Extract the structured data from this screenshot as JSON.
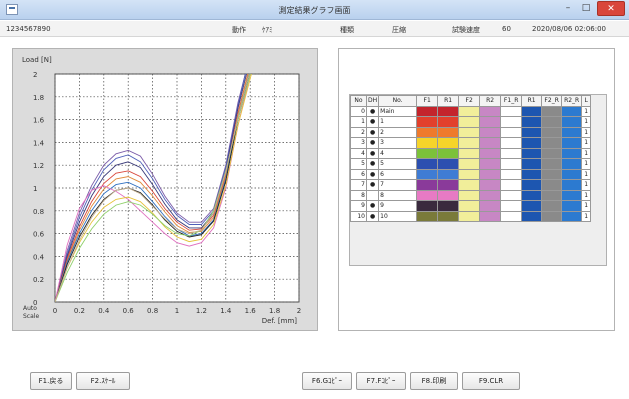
{
  "window": {
    "title": "測定結果グラフ画面",
    "min_glyph": "–",
    "max_glyph": "□",
    "close_glyph": "✕"
  },
  "info": {
    "id": "1234567890",
    "label_operation": "動作",
    "value_operation": "ｹｱﾐ",
    "label_type": "種類",
    "value_type": "圧縮",
    "label_speed": "試験速度",
    "value_speed": "60",
    "datetime": "2020/08/06 02:06:00"
  },
  "chart_data": {
    "type": "line",
    "ylabel": "Load [N]",
    "xlabel": "Def. [mm]",
    "xlim": [
      0,
      2
    ],
    "ylim": [
      0,
      2
    ],
    "xticks": [
      "0",
      "0.2",
      "0.4",
      "0.6",
      "0.8",
      "1",
      "1.2",
      "1.4",
      "1.6",
      "1.8",
      "2"
    ],
    "yticks": [
      "0",
      "0.2",
      "0.4",
      "0.6",
      "0.8",
      "1",
      "1.2",
      "1.4",
      "1.6",
      "1.8",
      "2"
    ],
    "grid": true,
    "series": [
      {
        "color": "#7a5aa8",
        "values": [
          [
            0,
            0
          ],
          [
            0.1,
            0.45
          ],
          [
            0.2,
            0.78
          ],
          [
            0.3,
            1.02
          ],
          [
            0.4,
            1.2
          ],
          [
            0.5,
            1.3
          ],
          [
            0.6,
            1.33
          ],
          [
            0.7,
            1.28
          ],
          [
            0.8,
            1.12
          ],
          [
            0.9,
            0.93
          ],
          [
            1.0,
            0.78
          ],
          [
            1.1,
            0.7
          ],
          [
            1.2,
            0.7
          ],
          [
            1.3,
            0.82
          ],
          [
            1.4,
            1.2
          ],
          [
            1.5,
            1.75
          ],
          [
            1.56,
            2.0
          ]
        ]
      },
      {
        "color": "#4f5fb8",
        "values": [
          [
            0,
            0
          ],
          [
            0.1,
            0.42
          ],
          [
            0.2,
            0.74
          ],
          [
            0.3,
            0.98
          ],
          [
            0.4,
            1.16
          ],
          [
            0.5,
            1.26
          ],
          [
            0.6,
            1.29
          ],
          [
            0.7,
            1.23
          ],
          [
            0.8,
            1.08
          ],
          [
            0.9,
            0.9
          ],
          [
            1.0,
            0.76
          ],
          [
            1.1,
            0.68
          ],
          [
            1.2,
            0.68
          ],
          [
            1.3,
            0.8
          ],
          [
            1.4,
            1.18
          ],
          [
            1.5,
            1.72
          ],
          [
            1.56,
            2.0
          ]
        ]
      },
      {
        "color": "#3b3b7a",
        "values": [
          [
            0,
            0
          ],
          [
            0.1,
            0.4
          ],
          [
            0.2,
            0.7
          ],
          [
            0.3,
            0.93
          ],
          [
            0.4,
            1.1
          ],
          [
            0.5,
            1.2
          ],
          [
            0.6,
            1.23
          ],
          [
            0.7,
            1.18
          ],
          [
            0.8,
            1.03
          ],
          [
            0.9,
            0.86
          ],
          [
            1.0,
            0.72
          ],
          [
            1.1,
            0.65
          ],
          [
            1.2,
            0.65
          ],
          [
            1.3,
            0.78
          ],
          [
            1.4,
            1.15
          ],
          [
            1.5,
            1.7
          ],
          [
            1.57,
            2.0
          ]
        ]
      },
      {
        "color": "#d8463a",
        "values": [
          [
            0,
            0
          ],
          [
            0.1,
            0.38
          ],
          [
            0.2,
            0.66
          ],
          [
            0.3,
            0.88
          ],
          [
            0.4,
            1.04
          ],
          [
            0.5,
            1.13
          ],
          [
            0.6,
            1.15
          ],
          [
            0.7,
            1.1
          ],
          [
            0.8,
            0.97
          ],
          [
            0.9,
            0.82
          ],
          [
            1.0,
            0.7
          ],
          [
            1.1,
            0.63
          ],
          [
            1.2,
            0.64
          ],
          [
            1.3,
            0.76
          ],
          [
            1.4,
            1.12
          ],
          [
            1.5,
            1.66
          ],
          [
            1.58,
            2.0
          ]
        ]
      },
      {
        "color": "#e08a3a",
        "values": [
          [
            0,
            0
          ],
          [
            0.1,
            0.36
          ],
          [
            0.2,
            0.63
          ],
          [
            0.3,
            0.84
          ],
          [
            0.4,
            0.99
          ],
          [
            0.5,
            1.08
          ],
          [
            0.6,
            1.1
          ],
          [
            0.7,
            1.05
          ],
          [
            0.8,
            0.93
          ],
          [
            0.9,
            0.79
          ],
          [
            1.0,
            0.67
          ],
          [
            1.1,
            0.61
          ],
          [
            1.2,
            0.62
          ],
          [
            1.3,
            0.74
          ],
          [
            1.4,
            1.1
          ],
          [
            1.5,
            1.64
          ],
          [
            1.58,
            2.0
          ]
        ]
      },
      {
        "color": "#2f6fc0",
        "values": [
          [
            0,
            0
          ],
          [
            0.1,
            0.35
          ],
          [
            0.2,
            0.6
          ],
          [
            0.3,
            0.8
          ],
          [
            0.4,
            0.95
          ],
          [
            0.5,
            1.03
          ],
          [
            0.6,
            1.05
          ],
          [
            0.7,
            1.0
          ],
          [
            0.8,
            0.88
          ],
          [
            0.9,
            0.75
          ],
          [
            1.0,
            0.64
          ],
          [
            1.1,
            0.58
          ],
          [
            1.2,
            0.6
          ],
          [
            1.3,
            0.72
          ],
          [
            1.4,
            1.08
          ],
          [
            1.5,
            1.62
          ],
          [
            1.59,
            2.0
          ]
        ]
      },
      {
        "color": "#222222",
        "values": [
          [
            0,
            0
          ],
          [
            0.1,
            0.33
          ],
          [
            0.2,
            0.57
          ],
          [
            0.3,
            0.76
          ],
          [
            0.4,
            0.9
          ],
          [
            0.5,
            0.98
          ],
          [
            0.6,
            1.0
          ],
          [
            0.7,
            0.96
          ],
          [
            0.8,
            0.85
          ],
          [
            0.9,
            0.72
          ],
          [
            1.0,
            0.62
          ],
          [
            1.1,
            0.57
          ],
          [
            1.2,
            0.59
          ],
          [
            1.3,
            0.71
          ],
          [
            1.4,
            1.06
          ],
          [
            1.5,
            1.6
          ],
          [
            1.59,
            2.0
          ]
        ]
      },
      {
        "color": "#e070c0",
        "values": [
          [
            0,
            0
          ],
          [
            0.1,
            0.5
          ],
          [
            0.2,
            0.82
          ],
          [
            0.3,
            0.98
          ],
          [
            0.4,
            1.02
          ],
          [
            0.5,
            0.97
          ],
          [
            0.6,
            0.9
          ],
          [
            0.7,
            0.8
          ],
          [
            0.8,
            0.7
          ],
          [
            0.9,
            0.6
          ],
          [
            1.0,
            0.52
          ],
          [
            1.1,
            0.49
          ],
          [
            1.2,
            0.52
          ],
          [
            1.3,
            0.65
          ],
          [
            1.4,
            1.0
          ],
          [
            1.5,
            1.55
          ],
          [
            1.6,
            2.0
          ]
        ]
      },
      {
        "color": "#e6c23a",
        "values": [
          [
            0,
            0
          ],
          [
            0.1,
            0.3
          ],
          [
            0.2,
            0.52
          ],
          [
            0.3,
            0.7
          ],
          [
            0.4,
            0.83
          ],
          [
            0.5,
            0.9
          ],
          [
            0.6,
            0.92
          ],
          [
            0.7,
            0.88
          ],
          [
            0.8,
            0.78
          ],
          [
            0.9,
            0.66
          ],
          [
            1.0,
            0.57
          ],
          [
            1.1,
            0.53
          ],
          [
            1.2,
            0.55
          ],
          [
            1.3,
            0.68
          ],
          [
            1.4,
            1.02
          ],
          [
            1.5,
            1.55
          ],
          [
            1.61,
            2.0
          ]
        ]
      },
      {
        "color": "#8fd06a",
        "values": [
          [
            0,
            0
          ],
          [
            0.1,
            0.26
          ],
          [
            0.2,
            0.47
          ],
          [
            0.3,
            0.64
          ],
          [
            0.4,
            0.77
          ],
          [
            0.5,
            0.85
          ],
          [
            0.6,
            0.88
          ],
          [
            0.7,
            0.85
          ],
          [
            0.8,
            0.77
          ],
          [
            0.9,
            0.67
          ],
          [
            1.0,
            0.6
          ],
          [
            1.1,
            0.58
          ],
          [
            1.2,
            0.63
          ],
          [
            1.3,
            0.8
          ],
          [
            1.4,
            1.15
          ],
          [
            1.5,
            1.6
          ],
          [
            1.6,
            2.0
          ]
        ]
      },
      {
        "color": "#c4b090",
        "values": [
          [
            0,
            0
          ],
          [
            0.1,
            0.3
          ],
          [
            0.2,
            0.54
          ],
          [
            0.3,
            0.74
          ],
          [
            0.4,
            0.89
          ],
          [
            0.5,
            0.98
          ],
          [
            0.6,
            1.0
          ],
          [
            0.7,
            0.95
          ],
          [
            0.8,
            0.84
          ],
          [
            0.9,
            0.73
          ],
          [
            1.0,
            0.64
          ],
          [
            1.1,
            0.6
          ],
          [
            1.2,
            0.63
          ],
          [
            1.3,
            0.78
          ],
          [
            1.4,
            1.14
          ],
          [
            1.5,
            1.62
          ],
          [
            1.59,
            2.0
          ]
        ]
      }
    ]
  },
  "chart_text": {
    "auto_scale": "Auto\nScale"
  },
  "table": {
    "headers": [
      "No",
      "DH",
      "No.",
      "F1",
      "R1",
      "F2",
      "R2",
      "F1_R",
      "R1",
      "F2_R",
      "R2_R",
      "L"
    ],
    "rows": [
      {
        "no": "0",
        "dot": "●",
        "label": "Main",
        "colors": [
          "#c4242c",
          "#c4242c",
          "#f1ee9a",
          "#c787c4",
          "#ffffff",
          "#1d56b0",
          "#8a8a8a",
          "#2c7ad0"
        ],
        "l": "1"
      },
      {
        "no": "1",
        "dot": "●",
        "label": "1",
        "colors": [
          "#e2402c",
          "#e2402c",
          "#f1ee9a",
          "#c787c4",
          "#ffffff",
          "#1d56b0",
          "#8a8a8a",
          "#2c7ad0"
        ],
        "l": "1"
      },
      {
        "no": "2",
        "dot": "●",
        "label": "2",
        "colors": [
          "#ef7a2c",
          "#ef7a2c",
          "#f1ee9a",
          "#c787c4",
          "#ffffff",
          "#1d56b0",
          "#8a8a8a",
          "#2c7ad0"
        ],
        "l": "1"
      },
      {
        "no": "3",
        "dot": "●",
        "label": "3",
        "colors": [
          "#f6d42a",
          "#f6d42a",
          "#f1ee9a",
          "#c787c4",
          "#ffffff",
          "#1d56b0",
          "#8a8a8a",
          "#2c7ad0"
        ],
        "l": "1"
      },
      {
        "no": "4",
        "dot": "●",
        "label": "4",
        "colors": [
          "#7cc23a",
          "#7cc23a",
          "#f1ee9a",
          "#c787c4",
          "#ffffff",
          "#1d56b0",
          "#8a8a8a",
          "#2c7ad0"
        ],
        "l": "1"
      },
      {
        "no": "5",
        "dot": "●",
        "label": "5",
        "colors": [
          "#2c4fb0",
          "#2c4fb0",
          "#f1ee9a",
          "#c787c4",
          "#ffffff",
          "#1d56b0",
          "#8a8a8a",
          "#2c7ad0"
        ],
        "l": "1"
      },
      {
        "no": "6",
        "dot": "●",
        "label": "6",
        "colors": [
          "#3f7cd4",
          "#3f7cd4",
          "#f1ee9a",
          "#c787c4",
          "#ffffff",
          "#1d56b0",
          "#8a8a8a",
          "#2c7ad0"
        ],
        "l": "1"
      },
      {
        "no": "7",
        "dot": "●",
        "label": "7",
        "colors": [
          "#8a3a9a",
          "#8a3a9a",
          "#f1ee9a",
          "#c787c4",
          "#ffffff",
          "#1d56b0",
          "#8a8a8a",
          "#2c7ad0"
        ],
        "l": "1"
      },
      {
        "no": "8",
        "dot": "",
        "label": "8",
        "colors": [
          "#e77ac4",
          "#e77ac4",
          "#f1ee9a",
          "#c787c4",
          "#ffffff",
          "#1d56b0",
          "#8a8a8a",
          "#2c7ad0"
        ],
        "l": "1"
      },
      {
        "no": "9",
        "dot": "●",
        "label": "9",
        "colors": [
          "#3a2a3e",
          "#3a2a3e",
          "#f1ee9a",
          "#c787c4",
          "#ffffff",
          "#1d56b0",
          "#8a8a8a",
          "#2c7ad0"
        ],
        "l": "1"
      },
      {
        "no": "10",
        "dot": "●",
        "label": "10",
        "colors": [
          "#7a7a3a",
          "#7a7a3a",
          "#f1ee9a",
          "#c787c4",
          "#ffffff",
          "#1d56b0",
          "#8a8a8a",
          "#2c7ad0"
        ],
        "l": "1"
      }
    ]
  },
  "buttons": {
    "f1": "F1.戻る",
    "f2": "F2.ｽｹｰﾙ",
    "f6": "F6.Gｺﾋﾟｰ",
    "f7": "F7.Fｺﾋﾟｰ",
    "f8": "F8.印刷",
    "f9": "F9.CLR"
  }
}
